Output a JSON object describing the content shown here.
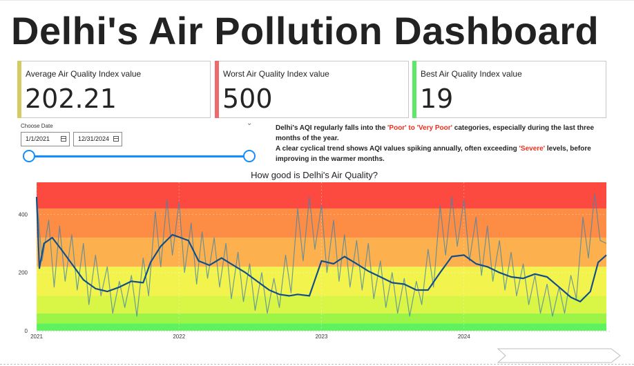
{
  "title": "Delhi's Air Pollution Dashboard",
  "cards": [
    {
      "label": "Average Air Quality Index value",
      "value": "202.21",
      "accent": "#d4cc63"
    },
    {
      "label": "Worst Air Quality Index value",
      "value": "500",
      "accent": "#ef6b6b"
    },
    {
      "label": "Best Air Quality Index value",
      "value": "19",
      "accent": "#5de86a"
    }
  ],
  "slicer": {
    "title": "Choose Date",
    "start": "1/1/2021",
    "end": "12/31/2024",
    "chevron": "chevron-down-icon",
    "calendar_icon": "calendar-icon"
  },
  "note": {
    "p1_pre": "Delhi's AQI regularly falls into the ",
    "p1_hl": "'Poor' to 'Very Poor'",
    "p1_post": " categories, especially during the last three months of the year.",
    "p2_pre": "A clear cyclical trend shows AQI values spiking annually, often exceeding ",
    "p2_hl": "'Severe'",
    "p2_post": " levels, before improving in the warmer months.",
    "highlight_color": "#e8301e"
  },
  "chart_data": {
    "type": "line",
    "title": "How good is Delhi's Air Quality?",
    "xlabel": "",
    "ylabel": "",
    "x_range": [
      "2021-01-01",
      "2024-12-31"
    ],
    "x_ticks": [
      "2021",
      "2022",
      "2023",
      "2024"
    ],
    "y_ticks": [
      0,
      200,
      400
    ],
    "ylim": [
      0,
      510
    ],
    "grid": true,
    "bands": [
      {
        "from": 0,
        "to": 25,
        "color": "#5ef25e"
      },
      {
        "from": 25,
        "to": 60,
        "color": "#9cf546"
      },
      {
        "from": 60,
        "to": 120,
        "color": "#d9f545"
      },
      {
        "from": 120,
        "to": 220,
        "color": "#f3f34e"
      },
      {
        "from": 220,
        "to": 320,
        "color": "#fdb14e"
      },
      {
        "from": 320,
        "to": 420,
        "color": "#fd8c44"
      },
      {
        "from": 420,
        "to": 510,
        "color": "#fc4a41"
      }
    ],
    "series": [
      {
        "role": "daily",
        "color": "#4a86a4",
        "x": [
          "2021-01-01",
          "2021-01-15",
          "2021-02-01",
          "2021-02-15",
          "2021-03-01",
          "2021-03-15",
          "2021-04-01",
          "2021-04-15",
          "2021-05-01",
          "2021-05-15",
          "2021-06-01",
          "2021-06-15",
          "2021-07-01",
          "2021-07-15",
          "2021-08-01",
          "2021-08-15",
          "2021-09-01",
          "2021-09-15",
          "2021-10-01",
          "2021-10-15",
          "2021-11-01",
          "2021-11-15",
          "2021-12-01",
          "2021-12-15",
          "2022-01-01",
          "2022-01-15",
          "2022-02-01",
          "2022-02-15",
          "2022-03-01",
          "2022-03-15",
          "2022-04-01",
          "2022-04-15",
          "2022-05-01",
          "2022-05-15",
          "2022-06-01",
          "2022-06-15",
          "2022-07-01",
          "2022-07-15",
          "2022-08-01",
          "2022-08-15",
          "2022-09-01",
          "2022-09-15",
          "2022-10-01",
          "2022-10-15",
          "2022-11-01",
          "2022-11-15",
          "2022-12-01",
          "2022-12-15",
          "2023-01-01",
          "2023-01-15",
          "2023-02-01",
          "2023-02-15",
          "2023-03-01",
          "2023-03-15",
          "2023-04-01",
          "2023-04-15",
          "2023-05-01",
          "2023-05-15",
          "2023-06-01",
          "2023-06-15",
          "2023-07-01",
          "2023-07-15",
          "2023-08-01",
          "2023-08-15",
          "2023-09-01",
          "2023-09-15",
          "2023-10-01",
          "2023-10-15",
          "2023-11-01",
          "2023-11-15",
          "2023-12-01",
          "2023-12-15",
          "2024-01-01",
          "2024-01-15",
          "2024-02-01",
          "2024-02-15",
          "2024-03-01",
          "2024-03-15",
          "2024-04-01",
          "2024-04-15",
          "2024-05-01",
          "2024-05-15",
          "2024-06-01",
          "2024-06-15",
          "2024-07-01",
          "2024-07-15",
          "2024-08-01",
          "2024-08-15",
          "2024-09-01",
          "2024-09-15",
          "2024-10-01",
          "2024-10-15",
          "2024-11-01",
          "2024-11-15",
          "2024-12-01",
          "2024-12-15",
          "2024-12-31"
        ],
        "y": [
          460,
          240,
          380,
          150,
          360,
          170,
          330,
          140,
          300,
          90,
          260,
          120,
          220,
          60,
          170,
          80,
          190,
          50,
          250,
          120,
          410,
          220,
          450,
          260,
          440,
          200,
          370,
          160,
          340,
          180,
          320,
          150,
          300,
          110,
          270,
          100,
          230,
          70,
          200,
          60,
          180,
          80,
          260,
          130,
          420,
          240,
          460,
          280,
          430,
          200,
          380,
          170,
          330,
          150,
          310,
          140,
          300,
          110,
          240,
          80,
          200,
          60,
          180,
          50,
          170,
          90,
          280,
          150,
          430,
          260,
          460,
          290,
          450,
          240,
          390,
          190,
          360,
          170,
          310,
          140,
          270,
          120,
          230,
          90,
          190,
          60,
          160,
          50,
          150,
          60,
          190,
          110,
          390,
          250,
          470,
          310,
          300
        ]
      },
      {
        "role": "trend",
        "color": "#144e89",
        "x": [
          "2021-01-01",
          "2021-01-08",
          "2021-01-20",
          "2021-02-10",
          "2021-03-05",
          "2021-04-01",
          "2021-05-01",
          "2021-06-01",
          "2021-07-01",
          "2021-08-01",
          "2021-09-01",
          "2021-10-01",
          "2021-10-20",
          "2021-11-15",
          "2021-12-15",
          "2022-01-05",
          "2022-01-25",
          "2022-02-20",
          "2022-03-20",
          "2022-04-20",
          "2022-05-20",
          "2022-06-20",
          "2022-07-20",
          "2022-08-20",
          "2022-09-15",
          "2022-10-10",
          "2022-11-01",
          "2022-12-01",
          "2023-01-01",
          "2023-02-01",
          "2023-03-01",
          "2023-04-01",
          "2023-05-01",
          "2023-06-01",
          "2023-07-01",
          "2023-08-01",
          "2023-09-01",
          "2023-10-01",
          "2023-11-01",
          "2023-12-01",
          "2024-01-01",
          "2024-02-01",
          "2024-03-01",
          "2024-04-01",
          "2024-05-01",
          "2024-06-01",
          "2024-07-01",
          "2024-08-01",
          "2024-09-01",
          "2024-10-01",
          "2024-10-25",
          "2024-11-20",
          "2024-12-10",
          "2024-12-31"
        ],
        "y": [
          460,
          215,
          300,
          320,
          280,
          230,
          175,
          145,
          135,
          150,
          170,
          165,
          235,
          290,
          330,
          320,
          310,
          240,
          225,
          250,
          225,
          200,
          170,
          140,
          125,
          120,
          125,
          120,
          240,
          230,
          255,
          230,
          205,
          185,
          165,
          160,
          140,
          140,
          200,
          255,
          260,
          230,
          220,
          200,
          185,
          180,
          195,
          185,
          150,
          115,
          100,
          135,
          235,
          260
        ]
      }
    ]
  },
  "footer": {
    "icon": "next-page-arrow-icon"
  }
}
